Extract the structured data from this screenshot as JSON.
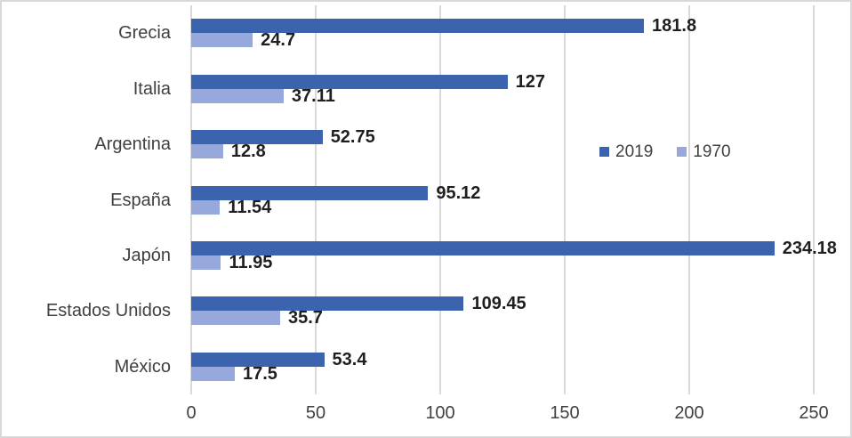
{
  "chart_data": {
    "type": "bar",
    "orientation": "horizontal",
    "title": "",
    "categories": [
      "Grecia",
      "Italia",
      "Argentina",
      "España",
      "Japón",
      "Estados Unidos",
      "México"
    ],
    "series": [
      {
        "name": "2019",
        "color": "#3C63AE",
        "values": [
          181.8,
          127,
          52.75,
          95.12,
          234.18,
          109.45,
          53.4
        ],
        "labels": [
          "181.8",
          "127",
          "52.75",
          "95.12",
          "234.18",
          "109.45",
          "53.4"
        ]
      },
      {
        "name": "1970",
        "color": "#96A8DC",
        "values": [
          24.7,
          37.11,
          12.8,
          11.54,
          11.95,
          35.7,
          17.5
        ],
        "labels": [
          "24.7",
          "37.11",
          "12.8",
          "11.54",
          "11.95",
          "35.7",
          "17.5"
        ]
      }
    ],
    "x_tick_labels": [
      "0",
      "50",
      "100",
      "150",
      "200",
      "250"
    ],
    "x_tick_values": [
      0,
      50,
      100,
      150,
      200,
      250
    ],
    "xlim": [
      0,
      250
    ],
    "grid": true,
    "legend_position": "center-right"
  },
  "style": {
    "background": "#FFFFFF",
    "border_color": "#D9D9D9",
    "grid_color": "#D9D9D9",
    "axis_text_color": "#404040",
    "data_label_color": "#1F1F1F"
  }
}
